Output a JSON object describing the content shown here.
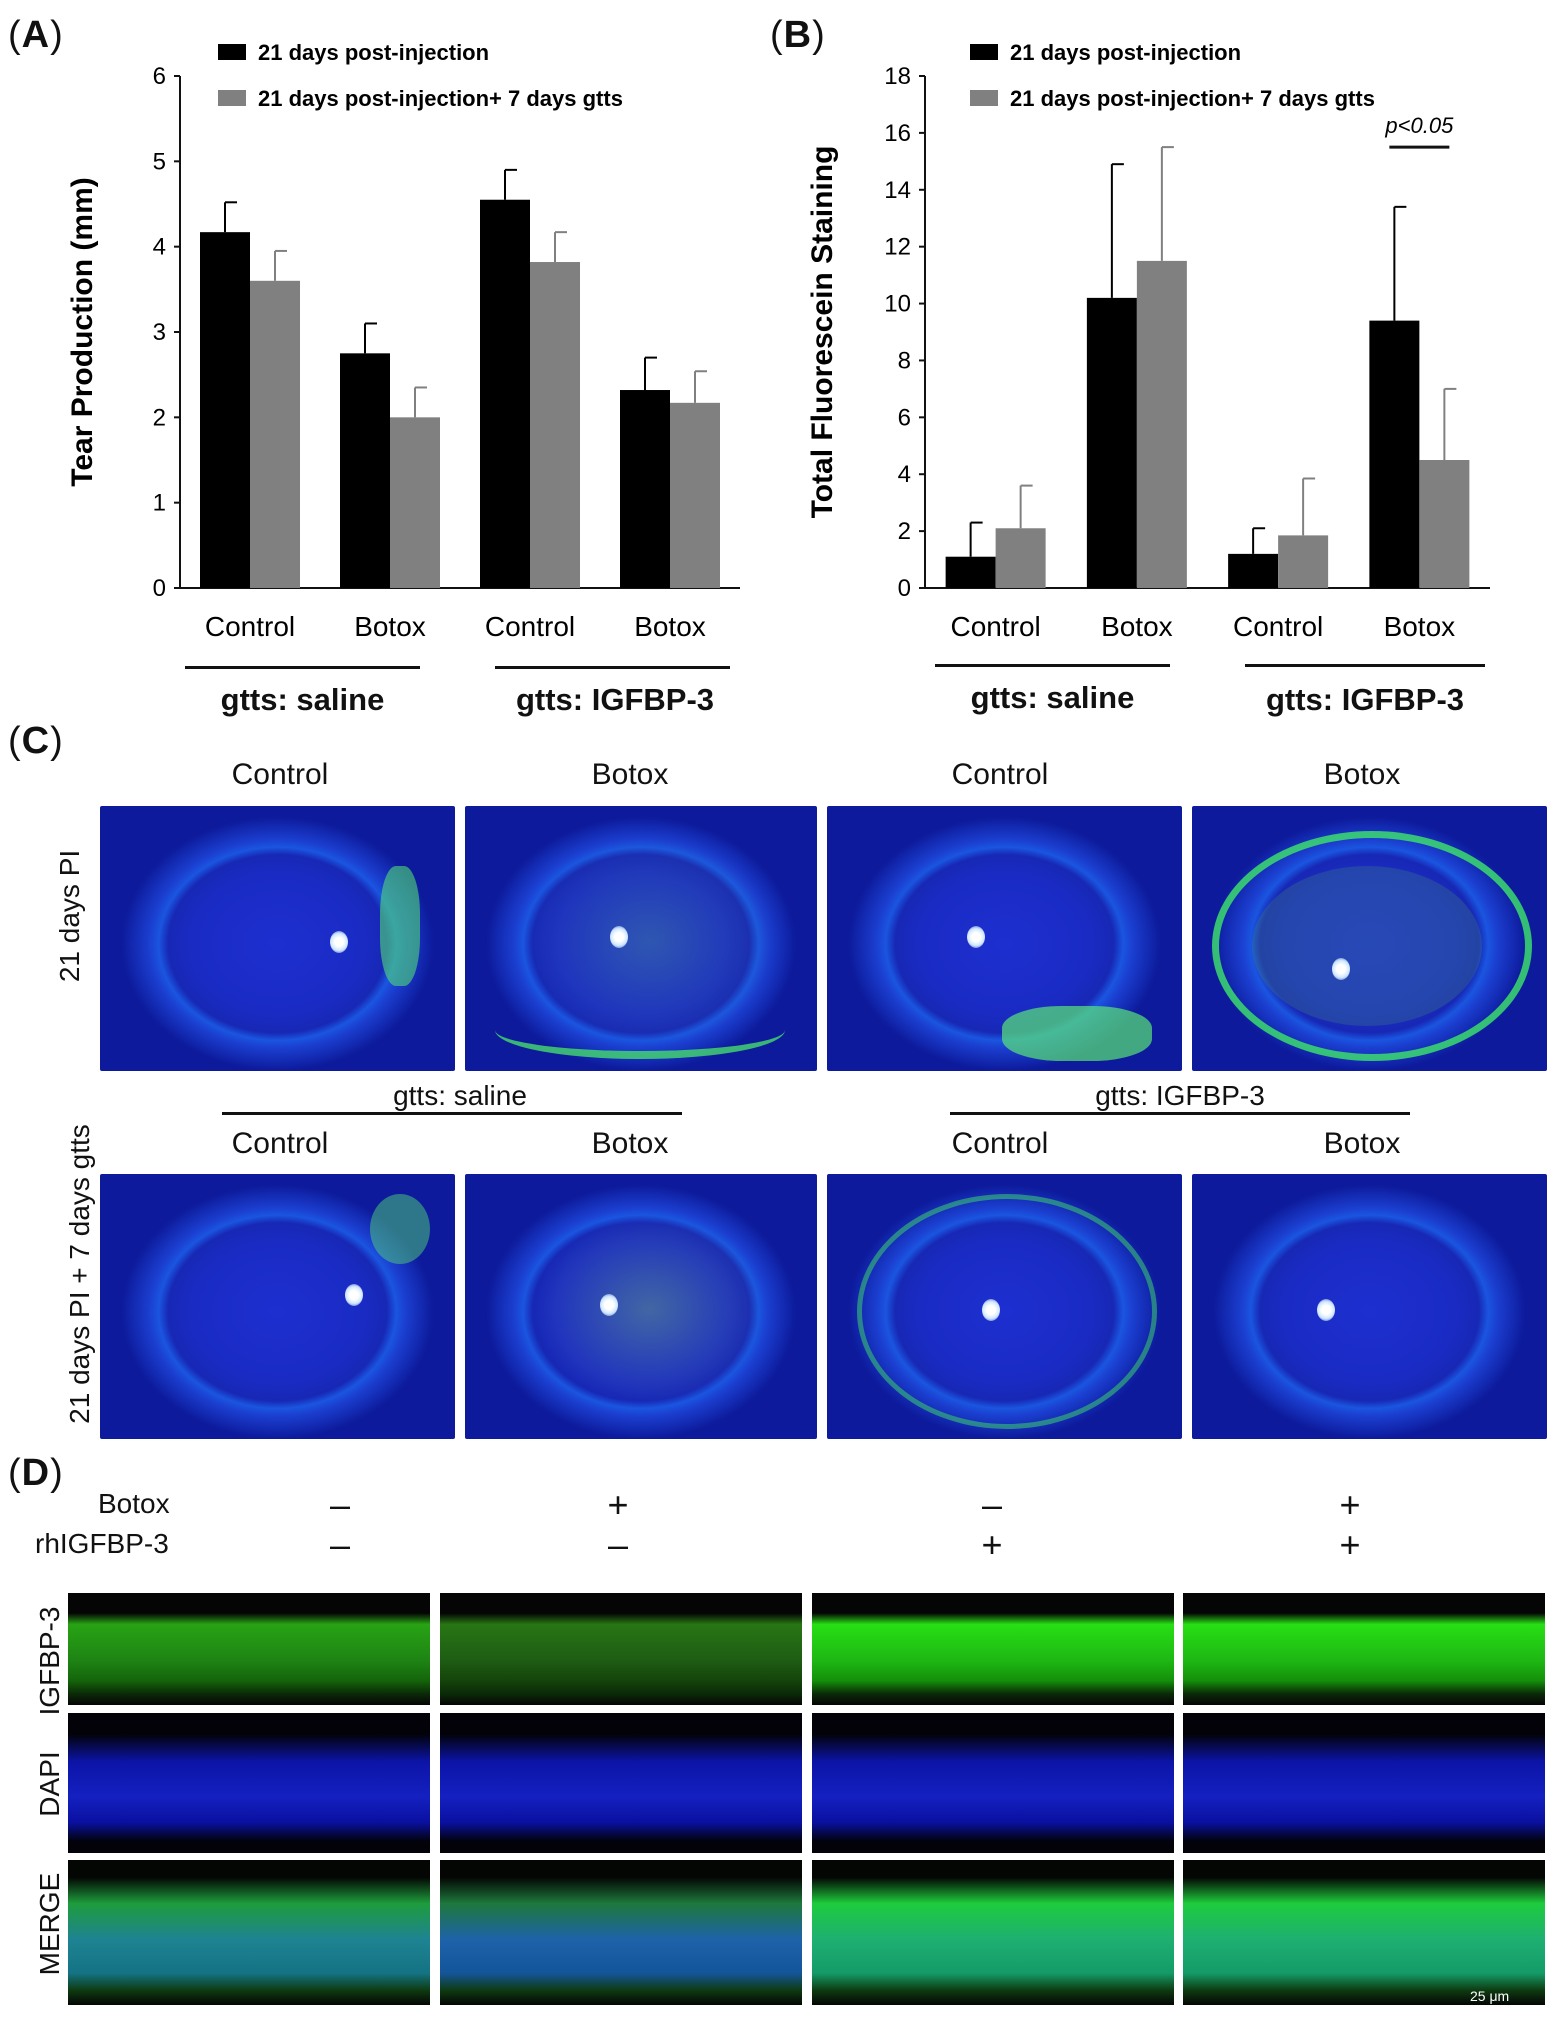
{
  "panel_a": {
    "letter": "A",
    "ylabel": "Tear Production (mm)",
    "group_labels": [
      "gtts: saline",
      "gtts: IGFBP-3"
    ],
    "chart_data": {
      "type": "bar",
      "title": "",
      "ylabel": "Tear Production (mm)",
      "ylim": [
        0,
        6
      ],
      "yticks": [
        "0",
        "1",
        "2",
        "3",
        "4",
        "5",
        "6"
      ],
      "categories": [
        "Control",
        "Botox",
        "Control",
        "Botox"
      ],
      "legend_position": "top",
      "series": [
        {
          "name": "21 days post-injection",
          "color": "#000000",
          "values": [
            4.17,
            2.75,
            4.55,
            2.32
          ],
          "errors": [
            0.35,
            0.35,
            0.35,
            0.38
          ]
        },
        {
          "name": "21 days post-injection+ 7 days gtts",
          "color": "#808080",
          "values": [
            3.6,
            2.0,
            3.82,
            2.17
          ],
          "errors": [
            0.35,
            0.35,
            0.35,
            0.37
          ]
        }
      ]
    }
  },
  "panel_b": {
    "letter": "B",
    "ylabel": "Total Fluorescein Staining",
    "group_labels": [
      "gtts: saline",
      "gtts: IGFBP-3"
    ],
    "annotation": "p<0.05",
    "chart_data": {
      "type": "bar",
      "title": "",
      "ylabel": "Total Fluorescein Staining",
      "ylim": [
        0,
        18
      ],
      "yticks": [
        "0",
        "2",
        "4",
        "6",
        "8",
        "10",
        "12",
        "14",
        "16",
        "18"
      ],
      "categories": [
        "Control",
        "Botox",
        "Control",
        "Botox"
      ],
      "legend_position": "top",
      "series": [
        {
          "name": "21 days post-injection",
          "color": "#000000",
          "values": [
            1.1,
            10.2,
            1.2,
            9.4
          ],
          "errors": [
            1.2,
            4.7,
            0.9,
            4.0
          ]
        },
        {
          "name": "21 days post-injection+ 7 days gtts",
          "color": "#808080",
          "values": [
            2.1,
            11.5,
            1.85,
            4.5
          ],
          "errors": [
            1.5,
            4.0,
            2.0,
            2.5
          ]
        }
      ]
    }
  },
  "panel_c": {
    "letter": "C",
    "col_labels_top": [
      "Control",
      "Botox",
      "Control",
      "Botox"
    ],
    "col_labels_bottom": [
      "Control",
      "Botox",
      "Control",
      "Botox"
    ],
    "group_labels": [
      "gtts:  saline",
      "gtts:  IGFBP-3"
    ],
    "row_labels": [
      "21 days PI",
      "21 days PI + 7 days gtts"
    ]
  },
  "panel_d": {
    "letter": "D",
    "cond_labels": [
      "Botox",
      "rhIGFBP-3"
    ],
    "botox_signs": [
      "–",
      "+",
      "–",
      "+"
    ],
    "rh_signs": [
      "–",
      "–",
      "+",
      "+"
    ],
    "row_labels": [
      "IGFBP-3",
      "DAPI",
      "MERGE"
    ],
    "scale_bar": "25 μm"
  }
}
